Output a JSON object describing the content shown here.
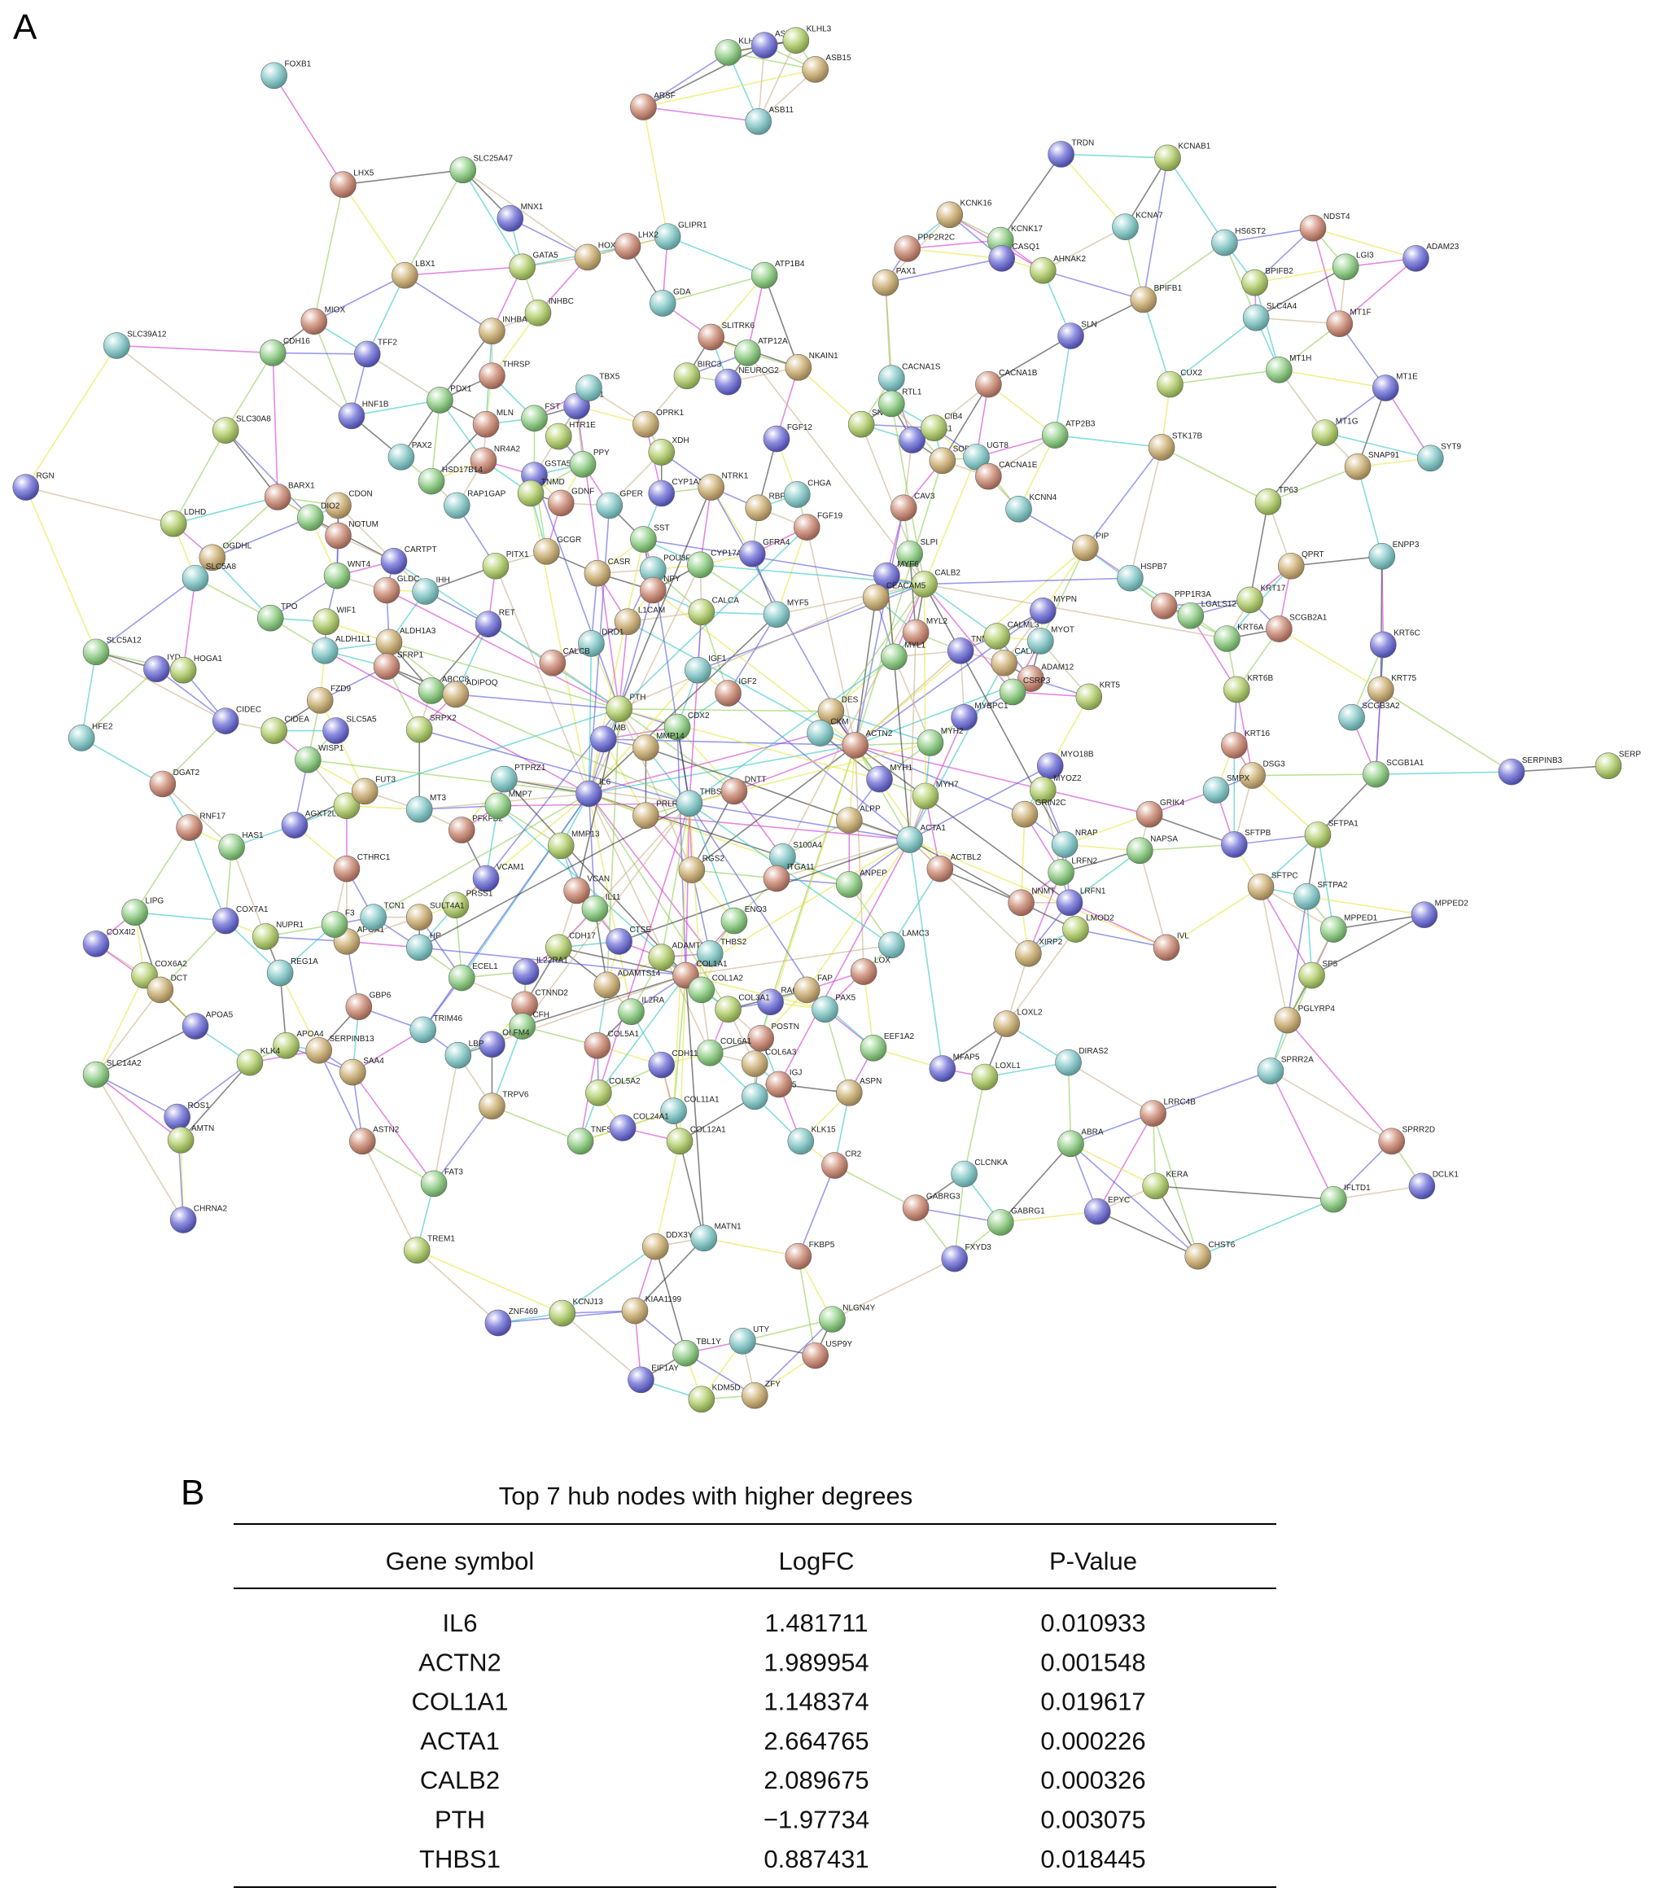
{
  "panel_a": {
    "label": "A",
    "nodes": [
      "FOXB1",
      "LHX5",
      "SLC25A47",
      "MNX1",
      "GATA5",
      "HOXC10",
      "GLIPR1",
      "LHX2",
      "KLHL13",
      "ASB5",
      "KLHL3",
      "ASB15",
      "ASB11",
      "ARSF",
      "ATP1B4",
      "TRDN",
      "KCNAB1",
      "KCNK16",
      "KCNA7",
      "PPP2R2C",
      "KCNK17",
      "CASQ1",
      "AHNAK2",
      "PAX1",
      "HS6ST2",
      "NDST4",
      "LGI3",
      "ADAM23",
      "BPIFB2",
      "BPIFB1",
      "SLC4A4",
      "MT1F",
      "MT1H",
      "MT1E",
      "MT1G",
      "SNAP91",
      "SYT9",
      "MIOX",
      "CDH16",
      "TFF2",
      "INHBC",
      "INHBA",
      "GDA",
      "SLITRK6",
      "ATP12A",
      "NEUROG2",
      "BIRC3",
      "NKAIN1",
      "SLC39A12",
      "THRSP",
      "FST",
      "ISL1",
      "HTR1E",
      "OPRK1",
      "TBX5",
      "MLN",
      "PDX1",
      "HNF1B",
      "SLC30A8",
      "LBX1",
      "PAX2",
      "NR4A2",
      "HSD17B14",
      "GSTA5",
      "TNMD",
      "CDON",
      "RAP1GAP",
      "BARX1",
      "DIO2",
      "RGN",
      "LDHD",
      "OGDHL",
      "SLC5A8",
      "NOTUM",
      "WNT4",
      "CARTPT",
      "PITX1",
      "GCGR",
      "IHH",
      "GLDC",
      "TPO",
      "RET",
      "WIF1",
      "ALDH1A3",
      "ALDH1L1",
      "SFRP1",
      "SLC5A12",
      "IYD",
      "HOGA1",
      "CASR",
      "POU3F4",
      "NPY",
      "SST",
      "CYP1A2",
      "XDH",
      "NTRK1",
      "GPER",
      "GDNF",
      "PPY",
      "FGF12",
      "SNTG1",
      "RBFOX3",
      "CHGA",
      "FGF19",
      "CYP17A1",
      "GFRA4",
      "CALCA",
      "L1CAM",
      "DRD1",
      "CALCB",
      "ABCC8",
      "CIDEC",
      "CIDEA",
      "FZD9",
      "HFE2",
      "DGAT2",
      "WISP1",
      "SLC5A5",
      "SRPX2",
      "ADIPOQ",
      "IGF1",
      "IGF2",
      "CDX2",
      "MB",
      "PTH",
      "MMP14",
      "PTPRZ1",
      "RNF17",
      "HAS1",
      "AGXT2L1",
      "HBB",
      "FUT3",
      "MT3",
      "PFKFB2",
      "MMP7",
      "IL6",
      "MMP13",
      "PRLR",
      "THBS1",
      "DNTT",
      "LIPG",
      "COX7A1",
      "NUPR1",
      "APOA1",
      "TCN1",
      "CTHRC1",
      "F3",
      "VCAM1",
      "PRSS1",
      "SULT4A1",
      "HP",
      "VCAN",
      "IL11",
      "CTSE",
      "CDH17",
      "RGS2",
      "S100A4",
      "ITGA11",
      "ENO3",
      "COX4I2",
      "COX6A2",
      "DCT",
      "REG1A",
      "GBP6",
      "ECEL1",
      "IL22RA1",
      "ADAMTS12",
      "ADAMTS14",
      "THBS2",
      "COL1A1",
      "COL1A2",
      "RAG2",
      "COL3A1",
      "FAP",
      "PAX5",
      "POSTN",
      "IL2RA",
      "APOA5",
      "APOA4",
      "SERPINB13",
      "TRIM46",
      "CTNND2",
      "CFH",
      "OLFM4",
      "KLK4",
      "SAA4",
      "LBP",
      "COL5A1",
      "COL6A1",
      "CDH11",
      "COL5A2",
      "COL6A3",
      "COL6A5",
      "IGJ",
      "SLC14A2",
      "ROS1",
      "AMTN",
      "TRPV6",
      "COL11A1",
      "ASTN2",
      "TNFSF4",
      "COL24A1",
      "COL12A1",
      "ASPN",
      "KLK15",
      "CR2",
      "FAT3",
      "CHRNA2",
      "TREM1",
      "DDX3Y",
      "MATN1",
      "FKBP5",
      "NLGN4Y",
      "ZNF469",
      "KCNJ13",
      "KIAA1199",
      "UTY",
      "USP9Y",
      "TBL1Y",
      "EIF1AY",
      "KDM5D",
      "ZFY",
      "CACNA1S",
      "CACNA1B",
      "RTL1",
      "ATP2A1",
      "CIB4",
      "SOD3",
      "UGT8",
      "CACNA1E",
      "ATP2B3",
      "SLN",
      "CUX2",
      "STK17B",
      "KCNN4",
      "CAV3",
      "SLPI",
      "MYF6",
      "CALB2",
      "CEACAM5",
      "MYF5",
      "MYL2",
      "MYL1",
      "TNNI2",
      "CALML3",
      "CALML5",
      "MYOT",
      "ADAM12",
      "CSRP3",
      "MYBPC1",
      "KRT5",
      "DES",
      "CKM",
      "ACTN2",
      "MYH2",
      "MYH1",
      "MYH7",
      "ALPP",
      "ACTA1",
      "ACTBL2",
      "ANPEP",
      "MYO18B",
      "MYOZ2",
      "GRIN2C",
      "NRAP",
      "NNMT",
      "LRFN2",
      "LRFN1",
      "LMOD2",
      "XIRP2",
      "LAMC3",
      "LOX",
      "EEF1A2",
      "MFAP5",
      "LOXL1",
      "LOXL2",
      "DIRAS2",
      "LRRC4B",
      "ABRA",
      "EPYC",
      "KERA",
      "CHST6",
      "CLCNKA",
      "GABRG3",
      "GABRG1",
      "FXYD3",
      "TP63",
      "PIP",
      "HSPB7",
      "PPP1R3A",
      "LGALS12",
      "MYPN",
      "KRT17",
      "QPRT",
      "ENPP3",
      "SCGB2A1",
      "KRT6A",
      "KRT6C",
      "KRT6B",
      "KRT75",
      "SCGB3A2",
      "KRT16",
      "SCGB1A1",
      "SERPINB3",
      "SERP",
      "DSG3",
      "SMPX",
      "GRIK4",
      "NAPSA",
      "SFTPB",
      "SFTPA1",
      "SFTPC",
      "SFTPA2",
      "IVL",
      "MPPED1",
      "MPPED2",
      "SP5",
      "PGLYRP4",
      "SPRR2A",
      "SPRR2D",
      "IFLTD1",
      "DCLK1"
    ]
  },
  "panel_b": {
    "label": "B",
    "title": "Top 7 hub nodes with higher degrees",
    "header": [
      "Gene symbol",
      "LogFC",
      "P-Value"
    ],
    "rows": [
      [
        "IL6",
        "1.481711",
        "0.010933"
      ],
      [
        "ACTN2",
        "1.989954",
        "0.001548"
      ],
      [
        "COL1A1",
        "1.148374",
        "0.019617"
      ],
      [
        "ACTA1",
        "2.664765",
        "0.000226"
      ],
      [
        "CALB2",
        "2.089675",
        "0.000326"
      ],
      [
        "PTH",
        "−1.97734",
        "0.003075"
      ],
      [
        "THBS1",
        "0.887431",
        "0.018445"
      ]
    ]
  }
}
